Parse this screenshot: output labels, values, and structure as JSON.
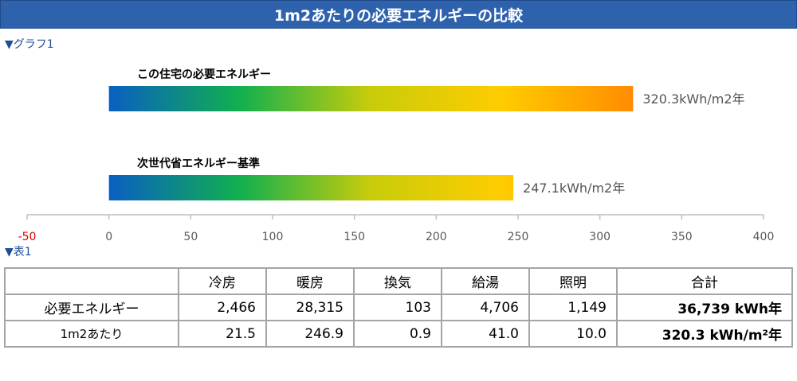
{
  "title": "1m2あたりの必要エネルギーの比較",
  "graph_label": "▼グラフ1",
  "table_label": "▼表1",
  "chart_data": {
    "type": "bar",
    "orientation": "horizontal",
    "categories": [
      "この住宅の必要エネルギー",
      "次世代省エネルギー基準"
    ],
    "values": [
      320.3,
      247.1
    ],
    "value_labels": [
      "320.3kWh/m2年",
      "247.1kWh/m2年"
    ],
    "xlim": [
      -50,
      400
    ],
    "ticks": [
      "-50",
      "0",
      "50",
      "100",
      "150",
      "200",
      "250",
      "300",
      "350",
      "400"
    ],
    "tick_values": [
      -50,
      0,
      50,
      100,
      150,
      200,
      250,
      300,
      350,
      400
    ],
    "gradient": [
      "#0a5fc2",
      "#11b04f",
      "#c9cc0a",
      "#ffcc00",
      "#ff8c00"
    ],
    "negative_tick_color": "#e00000",
    "grid": false
  },
  "table": {
    "headers": [
      "",
      "冷房",
      "暖房",
      "換気",
      "給湯",
      "照明",
      "合計"
    ],
    "rows": [
      [
        "必要エネルギー",
        "2,466",
        "28,315",
        "103",
        "4,706",
        "1,149",
        "36,739 kWh年"
      ],
      [
        "1m2あたり",
        "21.5",
        "246.9",
        "0.9",
        "41.0",
        "10.0",
        "320.3 kWh/m²年"
      ]
    ]
  }
}
